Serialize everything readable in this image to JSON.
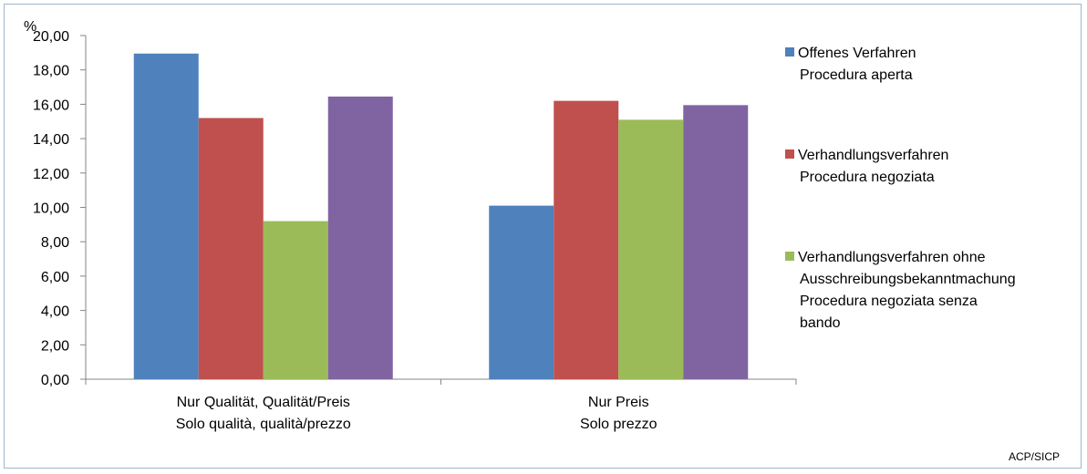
{
  "chart_data": {
    "type": "bar",
    "ylabel": "%",
    "ylim": [
      0,
      20
    ],
    "y_ticks": [
      "0,00",
      "2,00",
      "4,00",
      "6,00",
      "8,00",
      "10,00",
      "12,00",
      "14,00",
      "16,00",
      "18,00",
      "20,00"
    ],
    "categories": [
      [
        "Nur Qualität, Qualität/Preis",
        "Solo qualità, qualità/prezzo"
      ],
      [
        "Nur Preis",
        "Solo prezzo"
      ]
    ],
    "series": [
      {
        "name": [
          "Offenes Verfahren",
          "Procedura aperta"
        ],
        "color": "#4f81bd",
        "values": [
          18.95,
          10.1
        ]
      },
      {
        "name": [
          "Verhandlungsverfahren",
          "Procedura negoziata"
        ],
        "color": "#c0504d",
        "values": [
          15.2,
          16.2
        ]
      },
      {
        "name": [
          "Verhandlungsverfahren ohne",
          "Ausschreibungsbekanntmachung",
          "Procedura negoziata senza",
          "bando"
        ],
        "color": "#9bbb59",
        "values": [
          9.2,
          15.1
        ]
      },
      {
        "name": [],
        "color": "#8064a2",
        "values": [
          16.45,
          15.95
        ]
      }
    ],
    "grid": false,
    "legend_position": "right"
  },
  "source_label": "ACP/SICP"
}
